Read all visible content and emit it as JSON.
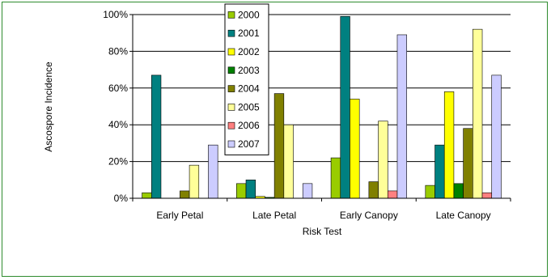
{
  "chart_data": {
    "type": "bar",
    "title": "",
    "xlabel": "Risk Test",
    "ylabel": "Ascospore Incidence",
    "ylim": [
      0,
      100
    ],
    "y_tick_labels": [
      "0%",
      "20%",
      "40%",
      "60%",
      "80%",
      "100%"
    ],
    "grid": "horizontal",
    "legend_position": "top-center",
    "categories": [
      "Early Petal",
      "Late Petal",
      "Early Canopy",
      "Late Canopy"
    ],
    "series": [
      {
        "name": "2000",
        "color": "#99cc00",
        "values": [
          3,
          8,
          22,
          7
        ]
      },
      {
        "name": "2001",
        "color": "#008080",
        "values": [
          67,
          10,
          99,
          29
        ]
      },
      {
        "name": "2002",
        "color": "#ffff00",
        "values": [
          0,
          1,
          54,
          58
        ]
      },
      {
        "name": "2003",
        "color": "#008000",
        "values": [
          0,
          0.5,
          0,
          8
        ]
      },
      {
        "name": "2004",
        "color": "#808000",
        "values": [
          4,
          57,
          9,
          38
        ]
      },
      {
        "name": "2005",
        "color": "#ffff99",
        "values": [
          18,
          40,
          42,
          92
        ]
      },
      {
        "name": "2006",
        "color": "#ff8080",
        "values": [
          0,
          0,
          4,
          3
        ]
      },
      {
        "name": "2007",
        "color": "#ccccff",
        "values": [
          29,
          8,
          89,
          67
        ]
      }
    ]
  }
}
